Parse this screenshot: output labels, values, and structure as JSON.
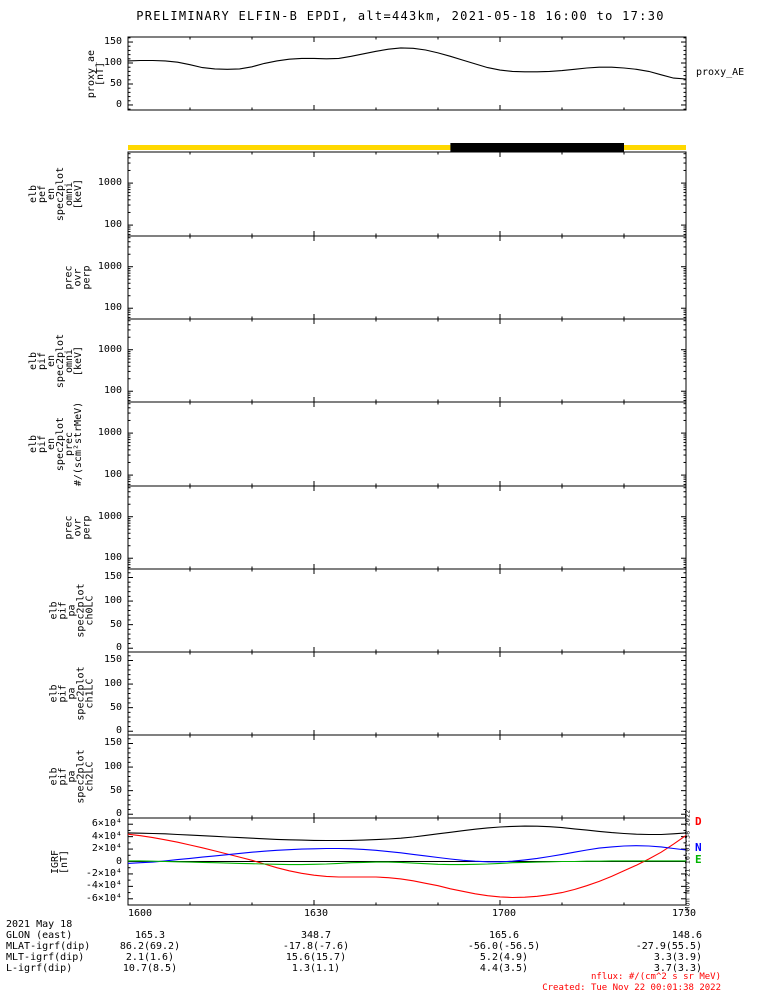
{
  "title": "PRELIMINARY ELFIN-B EPDI, alt=443km, 2021-05-18 16:00 to 17:30",
  "right_labels": {
    "proxy": "proxy_AE",
    "igrf": [
      {
        "text": "D",
        "color": "#ff0000"
      },
      {
        "text": "N",
        "color": "#0000ff"
      },
      {
        "text": "E",
        "color": "#00b400"
      }
    ]
  },
  "watermark_vertical": "Mon Nov 21 16:01:38 2022",
  "footer": {
    "nflux_note": "nflux: #/(cm^2 s sr MeV)",
    "created": "Created: Tue Nov 22 00:01:38 2022"
  },
  "ephemeris": {
    "rows": [
      {
        "label": "2021 May 18",
        "values": []
      },
      {
        "label": "GLON (east)",
        "values": [
          "165.3",
          "348.7",
          "165.6",
          "148.6"
        ]
      },
      {
        "label": "MLAT-igrf(dip)",
        "values": [
          "86.2(69.2)",
          "-17.8(-7.6)",
          "-56.0(-56.5)",
          "-27.9(55.5)"
        ]
      },
      {
        "label": "MLT-igrf(dip)",
        "values": [
          "2.1(1.6)",
          "15.6(15.7)",
          "5.2(4.9)",
          "3.3(3.9)"
        ]
      },
      {
        "label": "L-igrf(dip)",
        "values": [
          "10.7(8.5)",
          "1.3(1.1)",
          "4.4(3.5)",
          "3.7(3.3)"
        ]
      }
    ]
  },
  "chart_data": {
    "type": "line",
    "xaxis": {
      "range": [
        0,
        90
      ],
      "ticks": [
        0,
        30,
        60,
        90
      ],
      "tick_labels": [
        "1600",
        "1630",
        "1700",
        "1730"
      ],
      "minor_ticks": [
        10,
        20,
        40,
        50,
        70,
        80
      ]
    },
    "x_minutes": [
      0,
      2,
      4,
      6,
      8,
      10,
      12,
      14,
      16,
      18,
      20,
      22,
      24,
      26,
      28,
      30,
      32,
      34,
      36,
      38,
      40,
      42,
      44,
      46,
      48,
      50,
      52,
      54,
      56,
      58,
      60,
      62,
      64,
      66,
      68,
      70,
      72,
      74,
      76,
      78,
      80,
      82,
      84,
      86,
      88,
      90
    ],
    "panels": [
      {
        "type": "line",
        "name": "proxy-ae",
        "ylabel": "proxy_ae\n[nT]",
        "yscale": "linear",
        "ylim": [
          -12,
          162
        ],
        "yticks": [
          0,
          50,
          100,
          150
        ],
        "ytick_labels": [
          "0",
          "50",
          "100",
          "150"
        ],
        "yminor_step": 10,
        "series": [
          {
            "name": "proxy_AE",
            "color": "#000000",
            "values": [
              105,
              106,
              106,
              105,
              102,
              96,
              89,
              86,
              85,
              86,
              91,
              99,
              105,
              109,
              111,
              111,
              110,
              111,
              116,
              122,
              128,
              133,
              136,
              135,
              131,
              124,
              116,
              107,
              98,
              89,
              83,
              80,
              79,
              79,
              80,
              82,
              85,
              88,
              90,
              90,
              88,
              85,
              80,
              72,
              64,
              62
            ]
          }
        ]
      },
      {
        "type": "strip",
        "name": "orbit-segment-bar",
        "segments": [
          {
            "from": 0,
            "to": 52,
            "color": "#ffd800"
          },
          {
            "from": 52,
            "to": 80,
            "color": "#000000"
          },
          {
            "from": 80,
            "to": 90,
            "color": "#ffd800"
          }
        ]
      },
      {
        "type": "spectrogram",
        "name": "elb-pef-en-spec2plot-omni",
        "ylabel": "elb\npef\nen\nspec2plot\nomni\n[keV]",
        "yscale": "log",
        "ylim": [
          55,
          5500
        ],
        "yticks": [
          100,
          1000
        ],
        "ytick_labels": [
          "100",
          "1000"
        ],
        "series": []
      },
      {
        "type": "spectrogram",
        "name": "prec-ovr-perp-1",
        "ylabel": "prec\novr\nperp",
        "yscale": "log",
        "ylim": [
          55,
          5500
        ],
        "yticks": [
          100,
          1000
        ],
        "ytick_labels": [
          "100",
          "1000"
        ],
        "series": []
      },
      {
        "type": "spectrogram",
        "name": "elb-pif-en-spec2plot-omni",
        "ylabel": "elb\npif\nen\nspec2plot\nomni\n[keV]",
        "yscale": "log",
        "ylim": [
          55,
          5500
        ],
        "yticks": [
          100,
          1000
        ],
        "ytick_labels": [
          "100",
          "1000"
        ],
        "series": []
      },
      {
        "type": "spectrogram",
        "name": "elb-pif-en-spec2plot-prec",
        "ylabel": "elb\npif\nen\nspec2plot\nprec\n#/(scm²strMeV)",
        "yscale": "log",
        "ylim": [
          55,
          5500
        ],
        "yticks": [
          100,
          1000
        ],
        "ytick_labels": [
          "100",
          "1000"
        ],
        "series": []
      },
      {
        "type": "spectrogram",
        "name": "prec-ovr-perp-2",
        "ylabel": "prec\novr\nperp",
        "yscale": "log",
        "ylim": [
          55,
          5500
        ],
        "yticks": [
          100,
          1000
        ],
        "ytick_labels": [
          "100",
          "1000"
        ],
        "series": []
      },
      {
        "type": "spectrogram",
        "name": "elb-pif-pa-spec2plot-ch0LC",
        "ylabel": "elb\npif\npa\nspec2plot\nch0LC",
        "yscale": "linear",
        "ylim": [
          -8,
          168
        ],
        "yticks": [
          0,
          50,
          100,
          150
        ],
        "ytick_labels": [
          "0",
          "50",
          "100",
          "150"
        ],
        "yminor_step": 10,
        "series": []
      },
      {
        "type": "spectrogram",
        "name": "elb-pif-pa-spec2plot-ch1LC",
        "ylabel": "elb\npif\npa\nspec2plot\nch1LC",
        "yscale": "linear",
        "ylim": [
          -8,
          168
        ],
        "yticks": [
          0,
          50,
          100,
          150
        ],
        "ytick_labels": [
          "0",
          "50",
          "100",
          "150"
        ],
        "yminor_step": 10,
        "series": []
      },
      {
        "type": "spectrogram",
        "name": "elb-pif-pa-spec2plot-ch2LC",
        "ylabel": "elb\npif\npa\nspec2plot\nch2LC",
        "yscale": "linear",
        "ylim": [
          -8,
          168
        ],
        "yticks": [
          0,
          50,
          100,
          150
        ],
        "ytick_labels": [
          "0",
          "50",
          "100",
          "150"
        ],
        "yminor_step": 10,
        "series": []
      },
      {
        "type": "line",
        "name": "igrf",
        "ylabel": "IGRF\n[nT]",
        "yscale": "linear",
        "ylim": [
          -70000,
          70000
        ],
        "yticks": [
          -60000,
          -40000,
          -20000,
          0,
          20000,
          40000,
          60000
        ],
        "ytick_labels": [
          "-6×10⁴",
          "-4×10⁴",
          "-2×10⁴",
          "0",
          "2×10⁴",
          "4×10⁴",
          "6×10⁴"
        ],
        "yminor_step": 10000,
        "zero_line": true,
        "series": [
          {
            "name": "IGRF-total",
            "color": "#000000",
            "values": [
              46000,
              45500,
              45000,
              44500,
              43500,
              42500,
              41500,
              40500,
              39500,
              38500,
              37500,
              36500,
              35500,
              35000,
              34500,
              34000,
              33800,
              33800,
              34000,
              34500,
              35200,
              36200,
              37500,
              39500,
              42000,
              44500,
              47000,
              49500,
              52000,
              54000,
              55500,
              56500,
              57000,
              56800,
              56000,
              54500,
              52500,
              50500,
              48500,
              46500,
              45000,
              44000,
              43500,
              43500,
              44500,
              46000
            ]
          },
          {
            "name": "D",
            "color": "#ff0000",
            "values": [
              44000,
              41500,
              38500,
              35000,
              31000,
              26500,
              22000,
              17000,
              12000,
              7000,
              2000,
              -4000,
              -10000,
              -15000,
              -19000,
              -22000,
              -24000,
              -25000,
              -25000,
              -25000,
              -25000,
              -26000,
              -28000,
              -31000,
              -35000,
              -39000,
              -44000,
              -48000,
              -52000,
              -55000,
              -57000,
              -58000,
              -57500,
              -56000,
              -53500,
              -50000,
              -45000,
              -39000,
              -32000,
              -24000,
              -15000,
              -6000,
              4000,
              15000,
              28000,
              42000
            ]
          },
          {
            "name": "N",
            "color": "#0000ff",
            "values": [
              -3000,
              -2000,
              -1000,
              1000,
              3000,
              5000,
              7000,
              9000,
              11000,
              13000,
              15000,
              16500,
              18000,
              19000,
              20000,
              20500,
              21000,
              21000,
              20500,
              19500,
              18000,
              16000,
              14000,
              11500,
              9000,
              6500,
              4000,
              2000,
              500,
              -500,
              -500,
              500,
              2500,
              5000,
              8000,
              11500,
              15000,
              18500,
              21500,
              23500,
              25000,
              25500,
              25000,
              23500,
              21000,
              18500
            ]
          },
          {
            "name": "E",
            "color": "#00b400",
            "values": [
              1000,
              1000,
              500,
              0,
              -500,
              -1000,
              -1500,
              -2000,
              -2500,
              -3000,
              -3500,
              -4000,
              -4500,
              -5000,
              -5000,
              -4500,
              -4000,
              -3000,
              -2000,
              -1500,
              -1000,
              -1000,
              -1500,
              -2500,
              -3500,
              -4500,
              -5000,
              -5000,
              -4500,
              -4000,
              -3000,
              -2000,
              -1500,
              -1000,
              -500,
              0,
              0,
              500,
              500,
              1000,
              1000,
              1000,
              1000,
              1000,
              1000,
              1000
            ]
          }
        ]
      }
    ]
  }
}
